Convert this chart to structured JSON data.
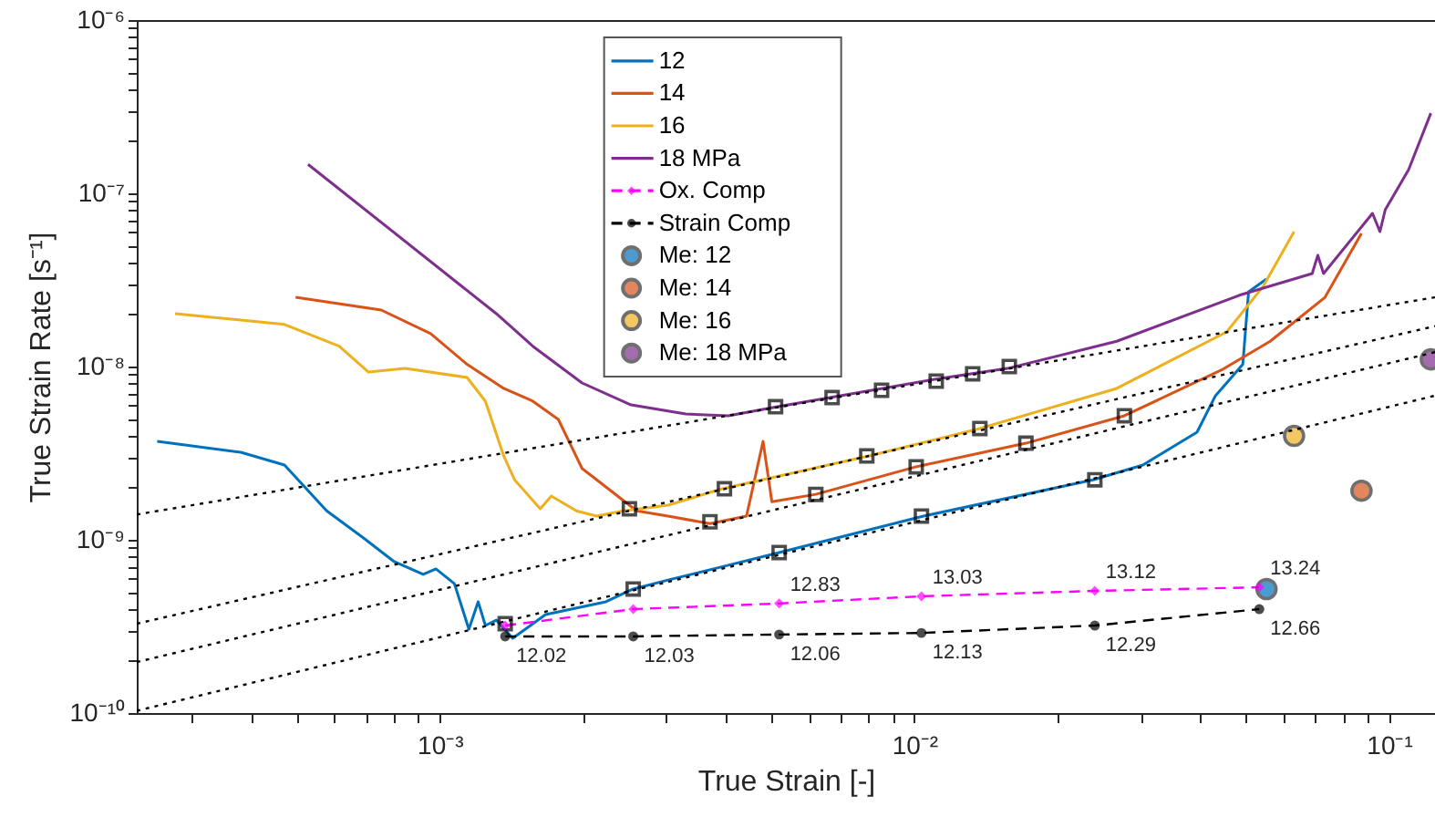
{
  "chart_data": {
    "type": "line",
    "log": "xy",
    "xlabel": "True Strain [-]",
    "ylabel": "True Strain Rate [s⁻¹]",
    "legend": "top",
    "grid": false,
    "xlim": [
      0.00023,
      0.125
    ],
    "ylim": [
      1e-10,
      1e-06
    ],
    "xticks": [
      {
        "value": 0.0003,
        "label": null
      },
      {
        "value": 0.0004,
        "label": null
      },
      {
        "value": 0.0005,
        "label": null
      },
      {
        "value": 0.0006,
        "label": null
      },
      {
        "value": 0.0007,
        "label": null
      },
      {
        "value": 0.0008,
        "label": null
      },
      {
        "value": 0.0009,
        "label": null
      },
      {
        "value": 0.001,
        "label": "10⁻³"
      },
      {
        "value": 0.002,
        "label": null
      },
      {
        "value": 0.003,
        "label": null
      },
      {
        "value": 0.004,
        "label": null
      },
      {
        "value": 0.005,
        "label": null
      },
      {
        "value": 0.006,
        "label": null
      },
      {
        "value": 0.007,
        "label": null
      },
      {
        "value": 0.008,
        "label": null
      },
      {
        "value": 0.009,
        "label": null
      },
      {
        "value": 0.01,
        "label": "10⁻²"
      },
      {
        "value": 0.02,
        "label": null
      },
      {
        "value": 0.03,
        "label": null
      },
      {
        "value": 0.04,
        "label": null
      },
      {
        "value": 0.05,
        "label": null
      },
      {
        "value": 0.06,
        "label": null
      },
      {
        "value": 0.07,
        "label": null
      },
      {
        "value": 0.08,
        "label": null
      },
      {
        "value": 0.09,
        "label": null
      },
      {
        "value": 0.1,
        "label": "10⁻¹"
      }
    ],
    "yticks": [
      {
        "value": 1e-10,
        "label": "10⁻¹⁰"
      },
      {
        "value": 2e-10,
        "label": null
      },
      {
        "value": 3e-10,
        "label": null
      },
      {
        "value": 4e-10,
        "label": null
      },
      {
        "value": 5e-10,
        "label": null
      },
      {
        "value": 6e-10,
        "label": null
      },
      {
        "value": 7e-10,
        "label": null
      },
      {
        "value": 8e-10,
        "label": null
      },
      {
        "value": 9e-10,
        "label": null
      },
      {
        "value": 1e-09,
        "label": "10⁻⁹"
      },
      {
        "value": 2e-09,
        "label": null
      },
      {
        "value": 3e-09,
        "label": null
      },
      {
        "value": 4e-09,
        "label": null
      },
      {
        "value": 5e-09,
        "label": null
      },
      {
        "value": 6e-09,
        "label": null
      },
      {
        "value": 7e-09,
        "label": null
      },
      {
        "value": 8e-09,
        "label": null
      },
      {
        "value": 9e-09,
        "label": null
      },
      {
        "value": 1e-08,
        "label": "10⁻⁸"
      },
      {
        "value": 2e-08,
        "label": null
      },
      {
        "value": 3e-08,
        "label": null
      },
      {
        "value": 4e-08,
        "label": null
      },
      {
        "value": 5e-08,
        "label": null
      },
      {
        "value": 6e-08,
        "label": null
      },
      {
        "value": 7e-08,
        "label": null
      },
      {
        "value": 8e-08,
        "label": null
      },
      {
        "value": 9e-08,
        "label": null
      },
      {
        "value": 1e-07,
        "label": "10⁻⁷"
      },
      {
        "value": 2e-07,
        "label": null
      },
      {
        "value": 3e-07,
        "label": null
      },
      {
        "value": 4e-07,
        "label": null
      },
      {
        "value": 5e-07,
        "label": null
      },
      {
        "value": 6e-07,
        "label": null
      },
      {
        "value": 7e-07,
        "label": null
      },
      {
        "value": 8e-07,
        "label": null
      },
      {
        "value": 9e-07,
        "label": null
      },
      {
        "value": 1e-06,
        "label": "10⁻⁶"
      }
    ],
    "annotations": [
      {
        "text": "12.83",
        "x": 0.00519,
        "y": 4.29e-10
      },
      {
        "text": "13.03",
        "x": 0.01035,
        "y": 4.72e-10
      },
      {
        "text": "13.12",
        "x": 0.024,
        "y": 5.07e-10
      },
      {
        "text": "13.24",
        "x": 0.0533,
        "y": 5.32e-10
      },
      {
        "text": "12.02",
        "x": 0.001374,
        "y": 2.77e-10
      },
      {
        "text": "12.03",
        "x": 0.002557,
        "y": 2.77e-10
      },
      {
        "text": "12.06",
        "x": 0.00519,
        "y": 2.84e-10
      },
      {
        "text": "12.13",
        "x": 0.01035,
        "y": 2.9e-10
      },
      {
        "text": "12.29",
        "x": 0.024,
        "y": 3.2e-10
      },
      {
        "text": "12.66",
        "x": 0.0533,
        "y": 3.98e-10
      }
    ],
    "series": [
      {
        "name": "12",
        "color": "#0072bd",
        "line_style": "solid",
        "x": [
          0.000254,
          0.000381,
          0.000471,
          0.000578,
          0.000689,
          0.000802,
          0.000923,
          0.000982,
          0.001074,
          0.001152,
          0.001205,
          0.001248,
          0.001316,
          0.001425,
          0.001671,
          0.002239,
          0.002557,
          0.003027,
          0.004055,
          0.00519,
          0.01045,
          0.0238,
          0.0303,
          0.0394,
          0.0431,
          0.0455,
          0.0492,
          0.0506,
          0.0552
        ],
        "values": [
          3.7e-09,
          3.2e-09,
          2.7e-09,
          1.47e-09,
          1.03e-09,
          7.48e-10,
          6.31e-10,
          6.79e-10,
          5.58e-10,
          3.05e-10,
          4.39e-10,
          3.2e-10,
          3.44e-10,
          2.7e-10,
          3.7e-10,
          4.39e-10,
          5.2e-10,
          5.86e-10,
          7.13e-10,
          8.44e-10,
          1.37e-09,
          2.22e-09,
          2.7e-09,
          4.18e-09,
          6.79e-09,
          8.04e-09,
          1.03e-08,
          2.7e-08,
          3.2e-08
        ]
      },
      {
        "name": "14",
        "color": "#d95319",
        "line_style": "solid",
        "x": [
          0.000497,
          0.000753,
          0.000957,
          0.001142,
          0.001364,
          0.001571,
          0.001778,
          0.001995,
          0.002239,
          0.0026,
          0.003027,
          0.00371,
          0.00443,
          0.0048,
          0.00501,
          0.0062,
          0.01009,
          0.01718,
          0.0277,
          0.0443,
          0.0562,
          0.0733,
          0.0875
        ],
        "values": [
          2.51e-08,
          2.12e-08,
          1.55e-08,
          1.03e-08,
          7.48e-09,
          6.31e-09,
          4.95e-09,
          2.58e-09,
          2.02e-09,
          1.47e-09,
          1.37e-09,
          1.24e-09,
          1.37e-09,
          3.7e-09,
          1.66e-09,
          1.83e-09,
          2.64e-09,
          3.61e-09,
          5.2e-09,
          9.53e-09,
          1.4e-08,
          2.51e-08,
          5.86e-08
        ]
      },
      {
        "name": "16",
        "color": "#edb120",
        "line_style": "solid",
        "x": [
          0.000277,
          0.000471,
          0.000614,
          0.000708,
          0.000845,
          0.001142,
          0.001248,
          0.001364,
          0.001438,
          0.001629,
          0.001718,
          0.001941,
          0.00214,
          0.00244,
          0.003027,
          0.00394,
          0.00802,
          0.01374,
          0.0267,
          0.0455,
          0.0543,
          0.0631
        ],
        "values": [
          2.02e-08,
          1.75e-08,
          1.31e-08,
          9.29e-09,
          9.75e-09,
          8.65e-09,
          6.31e-09,
          3.05e-09,
          2.22e-09,
          1.51e-09,
          1.79e-09,
          1.47e-09,
          1.37e-09,
          1.47e-09,
          1.585e-09,
          1.97e-09,
          3.05e-09,
          4.39e-09,
          7.48e-09,
          1.585e-08,
          2.9e-08,
          6.01e-08
        ]
      },
      {
        "name": "18 MPa",
        "color": "#7e2f8e",
        "line_style": "solid",
        "x": [
          0.000528,
          0.001316,
          0.001571,
          0.001995,
          0.00253,
          0.0033,
          0.004055,
          0.00515,
          0.01102,
          0.0157,
          0.0267,
          0.0484,
          0.0689,
          0.0708,
          0.0728,
          0.0923,
          0.0957,
          0.0982,
          0.11,
          0.1225
        ],
        "values": [
          1.47e-07,
          2.02e-08,
          1.31e-08,
          8.04e-09,
          6.01e-09,
          5.32e-09,
          5.2e-09,
          5.86e-09,
          8.44e-09,
          9.75e-09,
          1.4e-08,
          2.58e-08,
          3.44e-08,
          4.39e-08,
          3.44e-08,
          7.66e-08,
          6.01e-08,
          8.04e-08,
          1.37e-07,
          2.9e-07
        ]
      },
      {
        "name": "Ox. Comp",
        "color": "#ff00ff",
        "line_style": "dashed",
        "marker": "diamond",
        "x": [
          0.001374,
          0.002557,
          0.00519,
          0.01035,
          0.024,
          0.0533
        ],
        "values": [
          3.2e-10,
          3.98e-10,
          4.29e-10,
          4.72e-10,
          5.07e-10,
          5.32e-10
        ]
      },
      {
        "name": "Strain Comp",
        "color": "#000000",
        "line_style": "dashed",
        "marker": "circle",
        "x": [
          0.001374,
          0.002557,
          0.00519,
          0.01035,
          0.024,
          0.0533
        ],
        "values": [
          2.77e-10,
          2.77e-10,
          2.84e-10,
          2.9e-10,
          3.2e-10,
          3.98e-10
        ]
      },
      {
        "name": "Me: 12",
        "type": "scatter",
        "color": "#0072bd",
        "marker": "circle",
        "x": [
          0.0552
        ],
        "values": [
          5.2e-10
        ]
      },
      {
        "name": "Me: 14",
        "type": "scatter",
        "color": "#d95319",
        "marker": "circle",
        "x": [
          0.0875
        ],
        "values": [
          1.92e-09
        ]
      },
      {
        "name": "Me: 16",
        "type": "scatter",
        "color": "#edb120",
        "marker": "circle",
        "x": [
          0.0631
        ],
        "values": [
          3.98e-09
        ]
      },
      {
        "name": "Me: 18 MPa",
        "type": "scatter",
        "color": "#7e2f8e",
        "marker": "circle",
        "x": [
          0.1225
        ],
        "values": [
          1.1e-08
        ]
      },
      {
        "color": "#000000",
        "line_style": "dotted",
        "x": [
          0.00023,
          0.125
        ],
        "values": [
          1.4e-09,
          2.51e-08
        ]
      },
      {
        "color": "#000000",
        "line_style": "dotted",
        "x": [
          0.00023,
          0.125
        ],
        "values": [
          3.28e-10,
          1.71e-08
        ]
      },
      {
        "color": "#000000",
        "line_style": "dotted",
        "x": [
          0.00023,
          0.125
        ],
        "values": [
          1.97e-10,
          1.21e-08
        ]
      },
      {
        "color": "#000000",
        "line_style": "dotted",
        "x": [
          0.00023,
          0.125
        ],
        "values": [
          1.03e-10,
          6.79e-09
        ]
      },
      {
        "type": "scatter",
        "color": "#000000",
        "marker": "square",
        "x": [
          0.001374,
          0.002557,
          0.00519,
          0.01035,
          0.024,
          0.00371,
          0.0062,
          0.01009,
          0.01718,
          0.0277,
          0.00251,
          0.00398,
          0.00794,
          0.01374,
          0.0051,
          0.00671,
          0.00853,
          0.01112,
          0.01327,
          0.01585
        ],
        "values": [
          3.28e-10,
          5.2e-10,
          8.44e-10,
          1.37e-09,
          2.22e-09,
          1.27e-09,
          1.83e-09,
          2.64e-09,
          3.61e-09,
          5.2e-09,
          1.51e-09,
          1.97e-09,
          3.05e-09,
          4.39e-09,
          5.86e-09,
          6.62e-09,
          7.3e-09,
          8.24e-09,
          9.08e-09,
          1e-08
        ]
      }
    ]
  }
}
